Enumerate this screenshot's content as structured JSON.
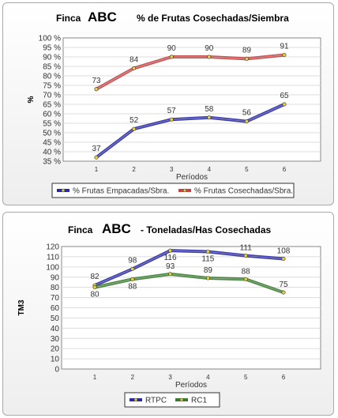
{
  "chart_data": [
    {
      "type": "line",
      "title_prefix": "Finca",
      "title_name": "ABC",
      "title_suffix": "% de Frutas Cosechadas/Siembra",
      "xlabel": "Períodos",
      "ylabel": "%",
      "categories": [
        "1",
        "2",
        "3",
        "4",
        "5",
        "6"
      ],
      "ylim": [
        35,
        100
      ],
      "yticks": [
        "35 %",
        "40 %",
        "45 %",
        "50 %",
        "55 %",
        "60 %",
        "65 %",
        "70 %",
        "75 %",
        "80 %",
        "85 %",
        "90 %",
        "95 %",
        "100 %"
      ],
      "grid": true,
      "legend_position": "bottom",
      "series": [
        {
          "name": "% Frutas Empacadas/Sbra.",
          "values": [
            37,
            52,
            57,
            58,
            56,
            65
          ],
          "labels": [
            "37",
            "52",
            "57",
            "58",
            "56",
            "65"
          ],
          "color": "#2a2aa0"
        },
        {
          "name": "% Frutas Cosechadas/Sbra.",
          "values": [
            73,
            84,
            90,
            90,
            89,
            91
          ],
          "labels": [
            "73",
            "84",
            "90",
            "90",
            "89",
            "91"
          ],
          "color": "#c04545"
        }
      ]
    },
    {
      "type": "line",
      "title_prefix": "Finca",
      "title_name": "ABC",
      "title_suffix": "- Toneladas/Has Cosechadas",
      "xlabel": "Períodos",
      "ylabel": "TM3",
      "categories": [
        "1",
        "2",
        "3",
        "4",
        "5",
        "6"
      ],
      "ylim": [
        0,
        120
      ],
      "yticks": [
        "0",
        "10",
        "20",
        "30",
        "40",
        "50",
        "60",
        "70",
        "80",
        "90",
        "100",
        "110",
        "120"
      ],
      "grid": true,
      "legend_position": "bottom",
      "series": [
        {
          "name": "RTPC",
          "values": [
            82,
            98,
            116,
            115,
            111,
            108
          ],
          "labels": [
            "82",
            "98",
            "116",
            "115",
            "111",
            "108"
          ],
          "color": "#2a2aa0"
        },
        {
          "name": "RC1",
          "values": [
            80,
            88,
            93,
            89,
            88,
            75
          ],
          "labels": [
            "80",
            "88",
            "93",
            "89",
            "88",
            "75"
          ],
          "color": "#3a7a30"
        }
      ]
    }
  ]
}
